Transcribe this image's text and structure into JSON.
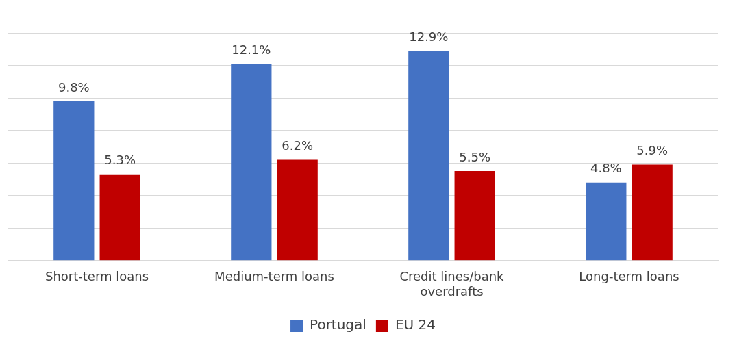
{
  "chart_data": {
    "type": "bar",
    "categories": [
      "Short-term loans",
      "Medium-term loans",
      "Credit lines/bank overdrafts",
      "Long-term loans"
    ],
    "series": [
      {
        "name": "Portugal",
        "color": "#4472c4",
        "values": [
          9.8,
          12.1,
          12.9,
          4.8
        ],
        "value_labels": [
          "9.8%",
          "12.1%",
          "12.9%",
          "4.8%"
        ]
      },
      {
        "name": "EU 24",
        "color": "#c00000",
        "values": [
          5.3,
          6.2,
          5.5,
          5.9
        ],
        "value_labels": [
          "5.3%",
          "6.2%",
          "5.5%",
          "5.9%"
        ]
      }
    ],
    "ylim": [
      0,
      14
    ],
    "yticks": [
      {
        "value": 0,
        "label": null
      },
      {
        "value": 2,
        "label": null
      },
      {
        "value": 4,
        "label": null
      },
      {
        "value": 6,
        "label": null
      },
      {
        "value": 8,
        "label": null
      },
      {
        "value": 10,
        "label": null
      },
      {
        "value": 12,
        "label": null
      },
      {
        "value": 14,
        "label": null
      }
    ],
    "tick_labels": "x",
    "grid": "y",
    "legend": "bottom"
  }
}
